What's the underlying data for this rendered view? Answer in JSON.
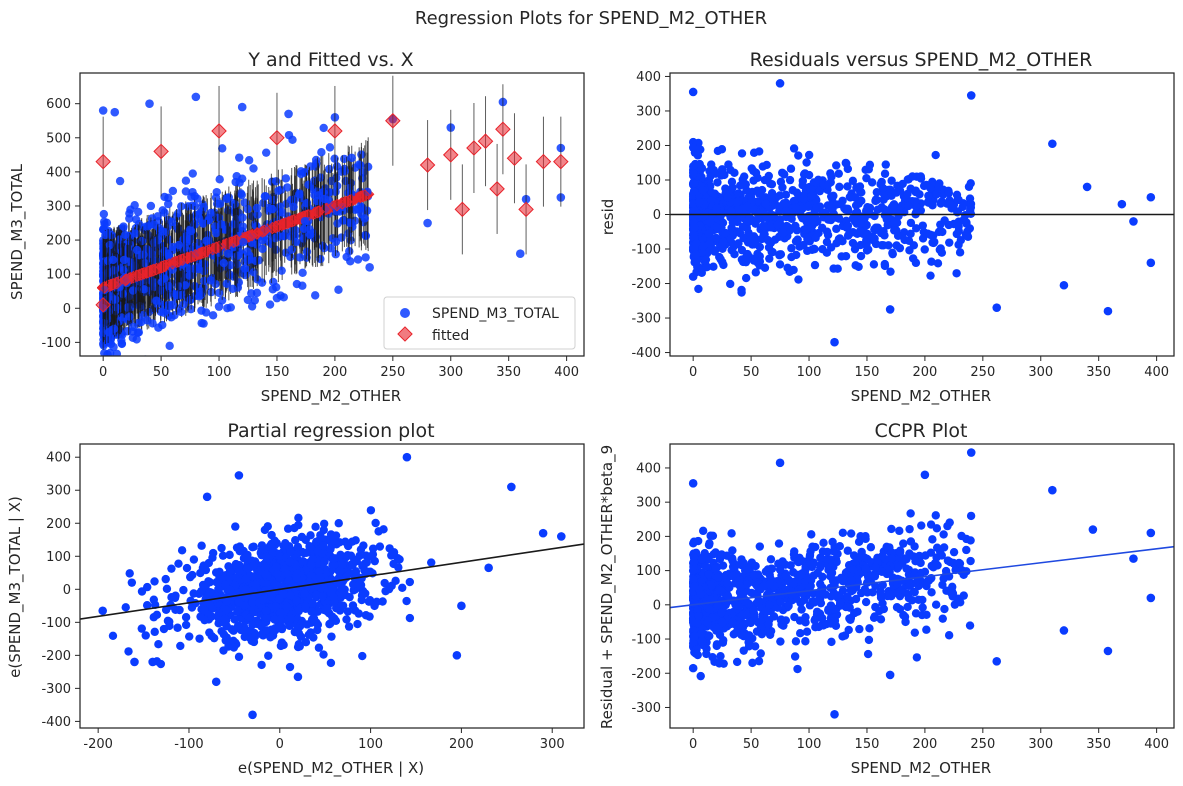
{
  "figure": {
    "suptitle": "Regression Plots for SPEND_M2_OTHER"
  },
  "colors": {
    "points": "#0a3cff",
    "fitted": "#e8232b",
    "errorbar": "#1a1a1a",
    "line": "#1a1a1a",
    "ccpr_line": "#1f49e0",
    "axes": "#262626"
  },
  "chart_data": [
    {
      "type": "scatter",
      "title": "Y and Fitted vs. X",
      "xlabel": "SPEND_M2_OTHER",
      "ylabel": "SPEND_M3_TOTAL",
      "xlim": [
        -20,
        415
      ],
      "ylim": [
        -140,
        690
      ],
      "xticks": [
        0,
        50,
        100,
        150,
        200,
        250,
        300,
        350,
        400
      ],
      "yticks": [
        -100,
        0,
        100,
        200,
        300,
        400,
        500,
        600
      ],
      "legend": {
        "placement": "lower right",
        "entries": [
          "SPEND_M3_TOTAL",
          "fitted"
        ]
      },
      "series": [
        {
          "name": "SPEND_M3_TOTAL",
          "marker": "circle",
          "points": [
            [
              0,
              0
            ],
            [
              0,
              580
            ],
            [
              10,
              575
            ],
            [
              40,
              600
            ],
            [
              80,
              620
            ],
            [
              120,
              590
            ],
            [
              160,
              570
            ],
            [
              200,
              560
            ],
            [
              250,
              555
            ],
            [
              300,
              530
            ],
            [
              345,
              605
            ],
            [
              360,
              160
            ],
            [
              365,
              320
            ],
            [
              395,
              470
            ],
            [
              395,
              325
            ],
            [
              280,
              250
            ],
            [
              230,
              120
            ],
            [
              150,
              30
            ],
            [
              100,
              5
            ],
            [
              60,
              10
            ]
          ]
        },
        {
          "name": "fitted",
          "marker": "diamond",
          "points": [
            [
              0,
              10
            ],
            [
              0,
              430
            ],
            [
              50,
              460
            ],
            [
              100,
              520
            ],
            [
              150,
              500
            ],
            [
              200,
              520
            ],
            [
              250,
              550
            ],
            [
              280,
              420
            ],
            [
              300,
              450
            ],
            [
              310,
              290
            ],
            [
              320,
              470
            ],
            [
              330,
              490
            ],
            [
              340,
              350
            ],
            [
              345,
              525
            ],
            [
              355,
              440
            ],
            [
              365,
              290
            ],
            [
              380,
              430
            ],
            [
              395,
              430
            ]
          ]
        }
      ]
    },
    {
      "type": "scatter",
      "title": "Residuals versus SPEND_M2_OTHER",
      "xlabel": "SPEND_M2_OTHER",
      "ylabel": "resid",
      "xlim": [
        -20,
        415
      ],
      "ylim": [
        -410,
        410
      ],
      "xticks": [
        0,
        50,
        100,
        150,
        200,
        250,
        300,
        350,
        400
      ],
      "yticks": [
        -400,
        -300,
        -200,
        -100,
        0,
        100,
        200,
        300,
        400
      ],
      "hline": 0,
      "series": [
        {
          "name": "",
          "points": [
            [
              0,
              355
            ],
            [
              75,
              380
            ],
            [
              240,
              345
            ],
            [
              310,
              205
            ],
            [
              320,
              -205
            ],
            [
              358,
              -280
            ],
            [
              395,
              -140
            ],
            [
              395,
              50
            ],
            [
              370,
              30
            ],
            [
              340,
              80
            ],
            [
              380,
              -20
            ],
            [
              122,
              -370
            ],
            [
              170,
              -275
            ],
            [
              262,
              -270
            ],
            [
              0,
              -180
            ]
          ]
        }
      ]
    },
    {
      "type": "scatter",
      "title": "Partial regression plot",
      "xlabel": "e(SPEND_M2_OTHER | X)",
      "ylabel": "e(SPEND_M3_TOTAL | X)",
      "xlim": [
        -220,
        335
      ],
      "ylim": [
        -420,
        440
      ],
      "xticks": [
        -200,
        -100,
        0,
        100,
        200,
        300
      ],
      "yticks": [
        -400,
        -300,
        -200,
        -100,
        0,
        100,
        200,
        300,
        400
      ],
      "fit_line": {
        "x": [
          -220,
          335
        ],
        "y": [
          -90,
          137
        ]
      },
      "series": [
        {
          "name": "",
          "points": [
            [
              -195,
              -65
            ],
            [
              -160,
              -220
            ],
            [
              -140,
              -220
            ],
            [
              -70,
              -280
            ],
            [
              140,
              400
            ],
            [
              255,
              310
            ],
            [
              310,
              160
            ],
            [
              290,
              170
            ],
            [
              -30,
              -380
            ],
            [
              20,
              -265
            ],
            [
              195,
              -200
            ],
            [
              200,
              -50
            ],
            [
              230,
              65
            ],
            [
              -80,
              280
            ],
            [
              -45,
              345
            ]
          ]
        }
      ]
    },
    {
      "type": "scatter",
      "title": "CCPR Plot",
      "xlabel": "SPEND_M2_OTHER",
      "ylabel": "Residual + SPEND_M2_OTHER*beta_9",
      "xlim": [
        -20,
        415
      ],
      "ylim": [
        -360,
        470
      ],
      "xticks": [
        0,
        50,
        100,
        150,
        200,
        250,
        300,
        350,
        400
      ],
      "yticks": [
        -300,
        -200,
        -100,
        0,
        100,
        200,
        300,
        400
      ],
      "fit_line": {
        "x": [
          -20,
          415
        ],
        "y": [
          -8,
          170
        ]
      },
      "series": [
        {
          "name": "",
          "points": [
            [
              0,
              355
            ],
            [
              75,
              415
            ],
            [
              240,
              445
            ],
            [
              310,
              335
            ],
            [
              320,
              -75
            ],
            [
              358,
              -135
            ],
            [
              395,
              20
            ],
            [
              395,
              210
            ],
            [
              380,
              135
            ],
            [
              345,
              220
            ],
            [
              122,
              -320
            ],
            [
              170,
              -205
            ],
            [
              262,
              -165
            ],
            [
              0,
              -185
            ],
            [
              200,
              380
            ]
          ]
        }
      ]
    }
  ]
}
